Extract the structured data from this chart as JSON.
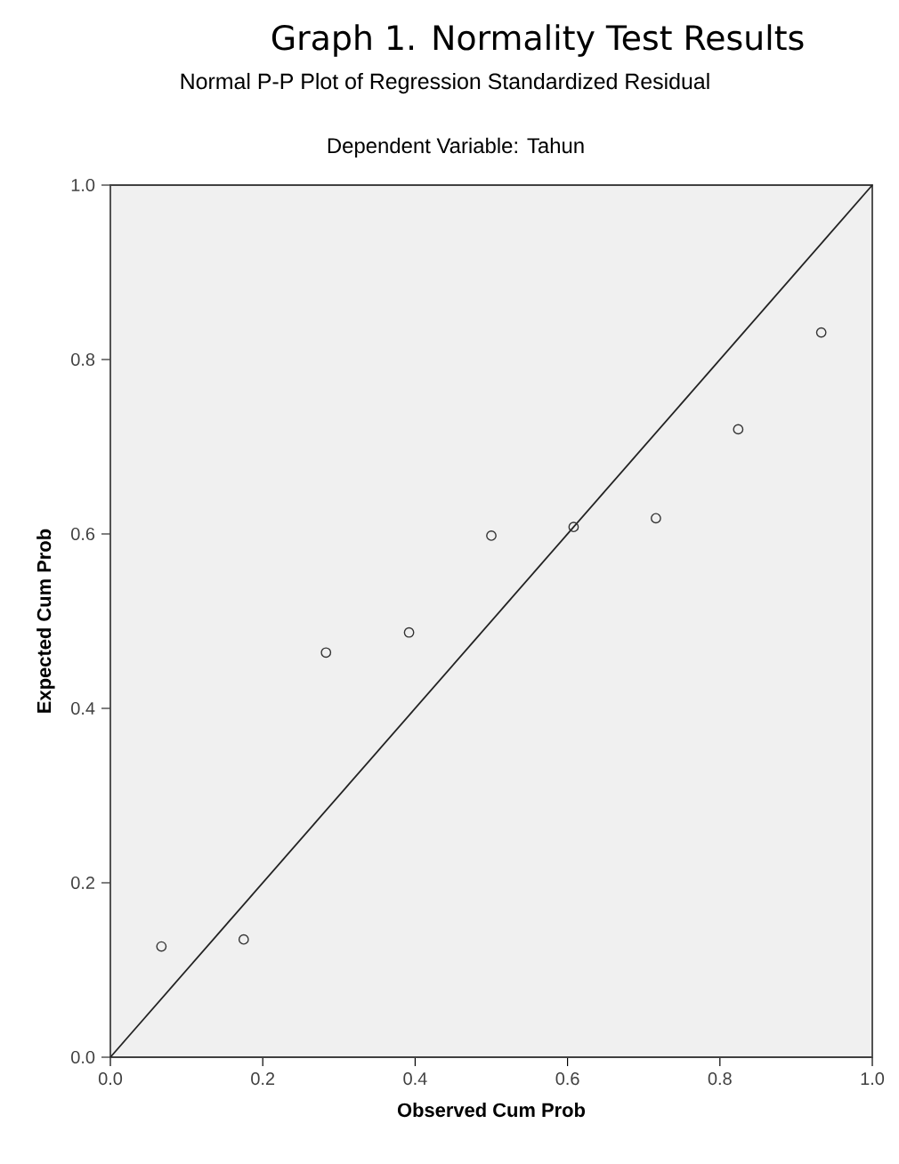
{
  "chart_data": {
    "type": "scatter",
    "title": "Graph 1. Normality Test Results",
    "subtitle": "Normal P-P Plot of Regression Standardized Residual",
    "annotations": [
      "Dependent Variable: Tahun"
    ],
    "xlabel": "Observed Cum Prob",
    "ylabel": "Expected Cum Prob",
    "series": [
      {
        "color": "#333333",
        "marker": "circle",
        "x": [
          0.067,
          0.175,
          0.283,
          0.392,
          0.5,
          0.608,
          0.716,
          0.824,
          0.933
        ],
        "values": [
          0.127,
          0.135,
          0.464,
          0.487,
          0.598,
          0.608,
          0.618,
          0.72,
          0.831
        ]
      },
      {
        "type": "line",
        "color": "#222222",
        "marker": "none",
        "x": [
          0,
          1
        ],
        "values": [
          0,
          1
        ]
      }
    ],
    "xlim": [
      0,
      1
    ],
    "ylim": [
      0,
      1
    ],
    "xticks": [
      {
        "value": 0,
        "label": "0.0"
      },
      {
        "value": 0.2,
        "label": "0.2"
      },
      {
        "value": 0.4,
        "label": "0.4"
      },
      {
        "value": 0.6,
        "label": "0.6"
      },
      {
        "value": 0.8,
        "label": "0.8"
      },
      {
        "value": 1,
        "label": "1.0"
      }
    ],
    "yticks": [
      {
        "value": 0,
        "label": "0.0"
      },
      {
        "value": 0.2,
        "label": "0.2"
      },
      {
        "value": 0.4,
        "label": "0.4"
      },
      {
        "value": 0.6,
        "label": "0.6"
      },
      {
        "value": 0.8,
        "label": "0.8"
      },
      {
        "value": 1,
        "label": "1.0"
      }
    ],
    "grid": false
  }
}
